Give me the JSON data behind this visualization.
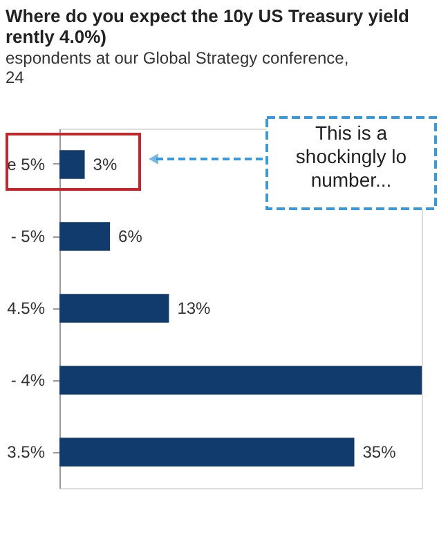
{
  "chart_data": {
    "type": "bar",
    "orientation": "horizontal",
    "title": [
      "Where do you expect the 10y US Treasury yield",
      "rently 4.0%)"
    ],
    "subtitle": [
      "espondents at our Global Strategy conference,",
      "24"
    ],
    "categories": [
      "e 5%",
      "- 5%",
      "4.5%",
      "- 4%",
      "3.5%"
    ],
    "values": [
      3,
      6,
      13,
      43,
      35
    ],
    "value_labels": [
      "3%",
      "6%",
      "13%",
      null,
      "35%"
    ],
    "color": "#123b6d",
    "annotations": [
      "This is a\nshockingly lo\nnumber..."
    ],
    "grid": false
  }
}
